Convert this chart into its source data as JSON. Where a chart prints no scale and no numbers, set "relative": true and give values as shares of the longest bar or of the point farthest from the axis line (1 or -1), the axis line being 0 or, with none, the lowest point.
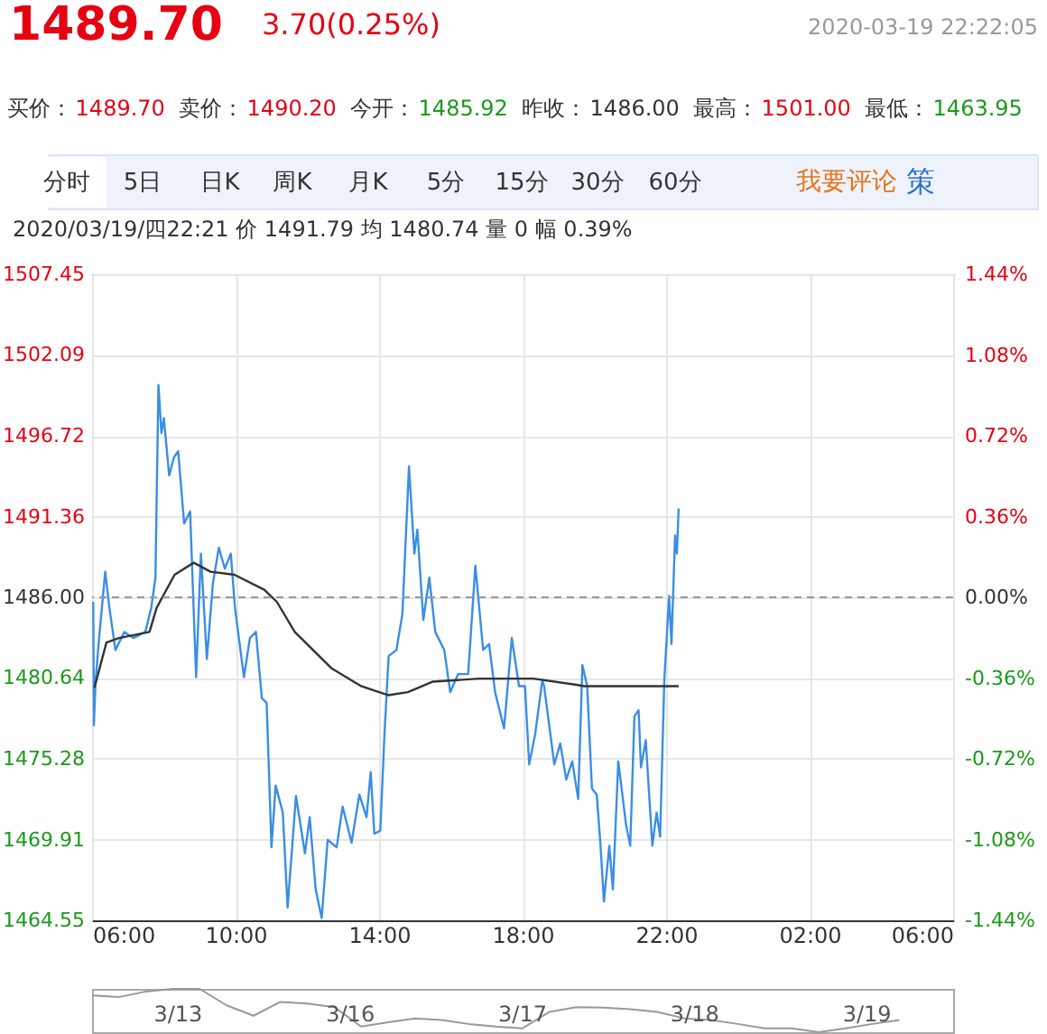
{
  "chart_data": [
    {
      "type": "line",
      "title": "1489.70",
      "subtitle": "3.70(0.25%)",
      "annotations": [
        "2020-03-19 22:22:05",
        "买价：1489.70",
        "卖价：1490.20",
        "今开：1485.92",
        "昨收：1486.00",
        "最高：1501.00",
        "最低：1463.95",
        "分时",
        "5日",
        "日K",
        "周K",
        "月K",
        "5分",
        "15分",
        "30分",
        "60分",
        "我要评论",
        "策",
        "2020/03/19/四22:21  价 1491.79  均 1480.74  量 0  幅 0.39%"
      ],
      "series": [
        {
          "color": "#3a8ee6",
          "x": [
            "2020-03-19T06:02",
            "2020-03-19T06:03",
            "2020-03-19T06:06",
            "2020-03-19T06:12",
            "2020-03-19T06:22",
            "2020-03-19T06:29",
            "2020-03-19T06:39",
            "2020-03-19T06:54",
            "2020-03-19T07:09",
            "2020-03-19T07:29",
            "2020-03-19T07:39",
            "2020-03-19T07:46",
            "2020-03-19T07:51",
            "2020-03-19T07:56",
            "2020-03-19T08:00",
            "2020-03-19T08:09",
            "2020-03-19T08:17",
            "2020-03-19T08:24",
            "2020-03-19T08:34",
            "2020-03-19T08:44",
            "2020-03-19T08:54",
            "2020-03-19T09:02",
            "2020-03-19T09:12",
            "2020-03-19T09:22",
            "2020-03-19T09:32",
            "2020-03-19T09:42",
            "2020-03-19T09:52",
            "2020-03-19T09:59",
            "2020-03-19T10:14",
            "2020-03-19T10:24",
            "2020-03-19T10:34",
            "2020-03-19T10:44",
            "2020-03-19T10:52",
            "2020-03-19T11:00",
            "2020-03-19T11:07",
            "2020-03-19T11:19",
            "2020-03-19T11:27",
            "2020-03-19T11:41",
            "2020-03-19T11:56",
            "2020-03-19T12:04",
            "2020-03-19T12:14",
            "2020-03-19T12:24",
            "2020-03-19T12:34",
            "2020-03-19T12:49",
            "2020-03-19T12:59",
            "2020-03-19T13:14",
            "2020-03-19T13:27",
            "2020-03-19T13:39",
            "2020-03-19T13:46",
            "2020-03-19T13:52",
            "2020-03-19T14:02",
            "2020-03-19T14:09",
            "2020-03-19T14:16",
            "2020-03-19T14:29",
            "2020-03-19T14:39",
            "2020-03-19T14:50",
            "2020-03-19T14:59",
            "2020-03-19T15:04",
            "2020-03-19T15:14",
            "2020-03-19T15:24",
            "2020-03-19T15:34",
            "2020-03-19T15:49",
            "2020-03-19T15:59",
            "2020-03-19T16:12",
            "2020-03-19T16:29",
            "2020-03-19T16:41",
            "2020-03-19T16:54",
            "2020-03-19T17:04",
            "2020-03-19T17:14",
            "2020-03-19T17:29",
            "2020-03-19T17:42",
            "2020-03-19T17:54",
            "2020-03-19T18:04",
            "2020-03-19T18:11",
            "2020-03-19T18:21",
            "2020-03-19T18:33",
            "2020-03-19T18:36",
            "2020-03-19T18:53",
            "2020-03-19T19:03",
            "2020-03-19T19:13",
            "2020-03-19T19:23",
            "2020-03-19T19:33",
            "2020-03-19T19:40",
            "2020-03-19T19:48",
            "2020-03-19T19:56",
            "2020-03-19T20:04",
            "2020-03-19T20:10",
            "2020-03-19T20:16",
            "2020-03-19T20:25",
            "2020-03-19T20:31",
            "2020-03-19T20:40",
            "2020-03-19T20:53",
            "2020-03-19T21:00",
            "2020-03-19T21:07",
            "2020-03-19T21:14",
            "2020-03-19T21:18",
            "2020-03-19T21:26",
            "2020-03-19T21:37",
            "2020-03-19T21:44",
            "2020-03-19T21:50",
            "2020-03-19T21:57",
            "2020-03-19T22:05",
            "2020-03-19T22:09",
            "2020-03-19T22:15",
            "2020-03-19T22:18",
            "2020-03-19T22:21"
          ],
          "values": [
            1485.7,
            1477.5,
            1480.5,
            1483.4,
            1487.7,
            1485.3,
            1482.5,
            1483.7,
            1483.3,
            1483.7,
            1485.3,
            1487.3,
            1500.1,
            1496.9,
            1497.9,
            1494.1,
            1495.3,
            1495.7,
            1490.9,
            1491.7,
            1480.7,
            1488.9,
            1481.9,
            1486.9,
            1489.3,
            1487.9,
            1488.9,
            1485.3,
            1480.7,
            1483.3,
            1483.7,
            1479.3,
            1479.0,
            1469.4,
            1473.5,
            1471.7,
            1465.4,
            1472.8,
            1469.0,
            1471.4,
            1466.6,
            1464.7,
            1469.9,
            1469.4,
            1472.1,
            1469.7,
            1472.9,
            1471.4,
            1474.4,
            1470.3,
            1470.5,
            1476.9,
            1482.1,
            1482.5,
            1484.9,
            1494.7,
            1488.9,
            1490.5,
            1484.5,
            1487.3,
            1483.7,
            1482.5,
            1479.7,
            1480.9,
            1480.9,
            1488.1,
            1482.5,
            1482.9,
            1479.7,
            1477.3,
            1483.3,
            1480.1,
            1480.1,
            1474.9,
            1476.9,
            1480.5,
            1480.1,
            1474.9,
            1476.3,
            1473.9,
            1475.1,
            1472.6,
            1481.5,
            1480.1,
            1473.3,
            1472.9,
            1469.7,
            1465.8,
            1469.5,
            1466.6,
            1475.1,
            1470.9,
            1469.5,
            1478.1,
            1478.5,
            1474.7,
            1476.5,
            1469.5,
            1471.7,
            1470.1,
            1480.5,
            1486.1,
            1482.9,
            1490.1,
            1488.9,
            1491.9
          ]
        },
        {
          "color": "#333333",
          "x": [
            "2020-03-19T06:04",
            "2020-03-19T06:24",
            "2020-03-19T06:45",
            "2020-03-19T07:36",
            "2020-03-19T07:48",
            "2020-03-19T08:18",
            "2020-03-19T08:50",
            "2020-03-19T09:18",
            "2020-03-19T09:58",
            "2020-03-19T10:48",
            "2020-03-19T11:09",
            "2020-03-19T11:39",
            "2020-03-19T12:40",
            "2020-03-19T13:30",
            "2020-03-19T14:15",
            "2020-03-19T14:48",
            "2020-03-19T15:30",
            "2020-03-19T16:48",
            "2020-03-19T17:58",
            "2020-03-19T18:18",
            "2020-03-19T19:28",
            "2020-03-19T19:43",
            "2020-03-19T22:21"
          ],
          "values": [
            1480.0,
            1483.0,
            1483.3,
            1483.7,
            1485.3,
            1487.5,
            1488.3,
            1487.7,
            1487.5,
            1486.5,
            1485.7,
            1483.7,
            1481.3,
            1480.1,
            1479.5,
            1479.7,
            1480.4,
            1480.6,
            1480.6,
            1480.6,
            1480.2,
            1480.1,
            1480.1
          ]
        }
      ],
      "xlim": [
        "2020-03-19T06:00",
        "2020-03-20T06:00"
      ],
      "xticks": [
        {
          "value": "2020-03-19T06:00",
          "label": "06:00"
        },
        {
          "value": "2020-03-19T10:00",
          "label": "10:00"
        },
        {
          "value": "2020-03-19T14:00",
          "label": "14:00"
        },
        {
          "value": "2020-03-19T18:00",
          "label": "18:00"
        },
        {
          "value": "2020-03-19T22:00",
          "label": "22:00"
        },
        {
          "value": "2020-03-20T02:00",
          "label": "02:00"
        },
        {
          "value": "2020-03-20T06:00",
          "label": "06:00"
        }
      ],
      "ylim": [
        1464.55,
        1507.45
      ],
      "yticks": [
        1464.55,
        1469.91,
        1475.28,
        1480.64,
        {
          "value": 1486,
          "label": "1486.00"
        },
        1491.36,
        1496.72,
        1502.09,
        1507.45
      ],
      "y2lim": [
        -1.44,
        1.44
      ],
      "y2ticks": [
        {
          "value": -1.44,
          "label": "-1.44%"
        },
        {
          "value": -1.08,
          "label": "-1.08%"
        },
        {
          "value": -0.72,
          "label": "-0.72%"
        },
        {
          "value": -0.36,
          "label": "-0.36%"
        },
        {
          "value": 0,
          "label": "0.00%"
        },
        {
          "value": 0.36,
          "label": "0.36%"
        },
        {
          "value": 0.72,
          "label": "0.72%"
        },
        {
          "value": 1.08,
          "label": "1.08%"
        },
        {
          "value": 1.44,
          "label": "1.44%"
        }
      ],
      "ref_lines": [
        {
          "axis": "y2",
          "value": 0,
          "color": "#999999",
          "line_style": "dashed"
        }
      ],
      "grid": true,
      "marker": "none",
      "line_style": "solid"
    },
    {
      "type": "line",
      "relative": true,
      "color": "#999999",
      "categories": [
        null,
        null,
        null,
        null,
        null,
        null,
        null,
        null,
        null,
        null,
        null,
        null,
        null,
        null,
        null,
        null,
        null,
        null,
        null,
        null,
        null,
        null,
        null,
        null,
        null,
        null,
        null,
        null,
        null,
        null,
        null,
        null,
        null
      ],
      "values": [
        0.85,
        0.81,
        0.94,
        1.0,
        1.0,
        0.62,
        0.38,
        0.7,
        0.66,
        0.58,
        0.13,
        0.23,
        0.32,
        0.28,
        0.19,
        0.13,
        0.09,
        0.47,
        0.58,
        0.57,
        0.53,
        0.47,
        0.32,
        0.28,
        0.19,
        0.09,
        0.09,
        0,
        0.09,
        0.19,
        0.28,
        null,
        null
      ],
      "annotations": [
        "3/13",
        "3/16",
        "3/17",
        "3/18",
        "3/19"
      ]
    }
  ]
}
